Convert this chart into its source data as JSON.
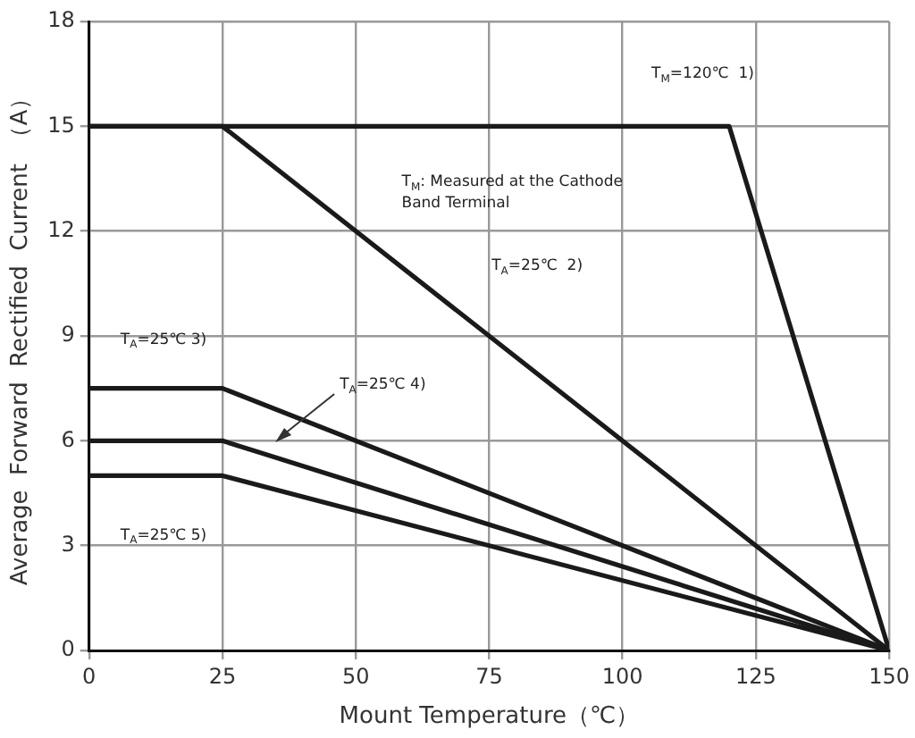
{
  "chart_data": {
    "type": "line",
    "xlabel": "Mount Temperature（℃）",
    "ylabel": "Average  Forward  Rectified  Current  （A）",
    "series": [
      {
        "color": "#1a1a1a",
        "x": [
          0,
          120,
          150
        ],
        "values": [
          15,
          15,
          0
        ]
      },
      {
        "color": "#1a1a1a",
        "x": [
          0,
          25,
          150
        ],
        "values": [
          15,
          15,
          0
        ]
      },
      {
        "color": "#1a1a1a",
        "x": [
          0,
          25,
          150
        ],
        "values": [
          7.5,
          7.5,
          0
        ]
      },
      {
        "color": "#1a1a1a",
        "x": [
          0,
          25,
          150
        ],
        "values": [
          6,
          6,
          0
        ]
      },
      {
        "color": "#1a1a1a",
        "x": [
          0,
          25,
          150
        ],
        "values": [
          5,
          5,
          0
        ]
      }
    ],
    "xlim": [
      0,
      150
    ],
    "xticks": [
      0,
      25,
      50,
      75,
      100,
      125,
      150
    ],
    "ylim": [
      0,
      18
    ],
    "yticks": [
      0,
      3,
      6,
      9,
      12,
      15,
      18
    ],
    "grid": true,
    "legend": false,
    "marker": "none",
    "line_style": "solid",
    "annotations": [
      "T$_{M}$=120℃  1)",
      "T$_{M}$: Measured at the Cathode\nBand Terminal",
      "T$_{A}$=25℃  2)",
      "T$_{A}$=25℃ 3)",
      "T$_{A}$=25℃ 4)",
      "T$_{A}$=25℃ 5)"
    ]
  }
}
